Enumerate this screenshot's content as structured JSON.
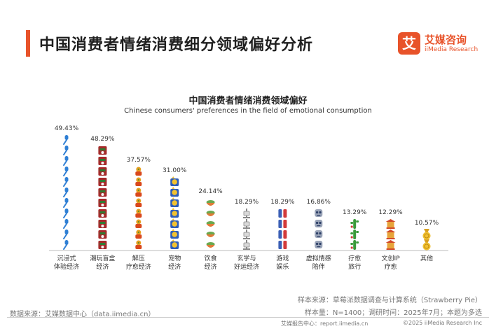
{
  "header": {
    "title": "中国消费者情绪消费细分领域偏好分析",
    "logo_badge": "艾",
    "logo_cn": "艾媒咨询",
    "logo_en": "iiMedia Research"
  },
  "chart_data": {
    "type": "bar",
    "title": "中国消费者情绪消费领域偏好",
    "subtitle": "Chinese consumers' preferences in the field of emotional consumption",
    "categories": [
      {
        "line1": "沉浸式",
        "line2": "体验经济"
      },
      {
        "line1": "潮玩盲盒",
        "line2": "经济"
      },
      {
        "line1": "解压",
        "line2": "疗愈经济"
      },
      {
        "line1": "宠物",
        "line2": "经济"
      },
      {
        "line1": "饮食",
        "line2": "经济"
      },
      {
        "line1": "玄学与",
        "line2": "好运经济"
      },
      {
        "line1": "游戏",
        "line2": "娱乐"
      },
      {
        "line1": "虚拟情感",
        "line2": "陪伴"
      },
      {
        "line1": "疗愈",
        "line2": "旅行"
      },
      {
        "line1": "文创IP",
        "line2": "疗愈"
      },
      {
        "line1": "其他",
        "line2": ""
      }
    ],
    "values": [
      49.43,
      48.29,
      37.57,
      31.0,
      24.14,
      18.29,
      18.29,
      16.86,
      13.29,
      12.29,
      10.57
    ],
    "labels": [
      "49.43%",
      "48.29%",
      "37.57%",
      "31.00%",
      "24.14%",
      "18.29%",
      "18.29%",
      "16.86%",
      "13.29%",
      "12.29%",
      "10.57%"
    ],
    "icons": [
      "microphone-icon",
      "blind-box-icon",
      "decompression-toy-icon",
      "cat-icon",
      "food-bowl-icon",
      "lantern-icon",
      "game-controller-icon",
      "robot-icon",
      "cactus-icon",
      "temple-icon",
      "medal-icon"
    ],
    "unit": "%",
    "ylim": [
      0,
      50
    ],
    "colors": {
      "baseline": "#bbbbbb"
    }
  },
  "footer": {
    "source_left": "数据来源：艾媒数据中心（data.iimedia.cn）",
    "note1": "样本来源：草莓派数据调查与计算系统（Strawberry Pie）",
    "note2": "样本量：N=1400；调研时间：2025年7月；本题为多选",
    "report_center": "艾媒报告中心：report.iimedia.cn",
    "copyright": "©2025  iiMedia Research  Inc"
  }
}
